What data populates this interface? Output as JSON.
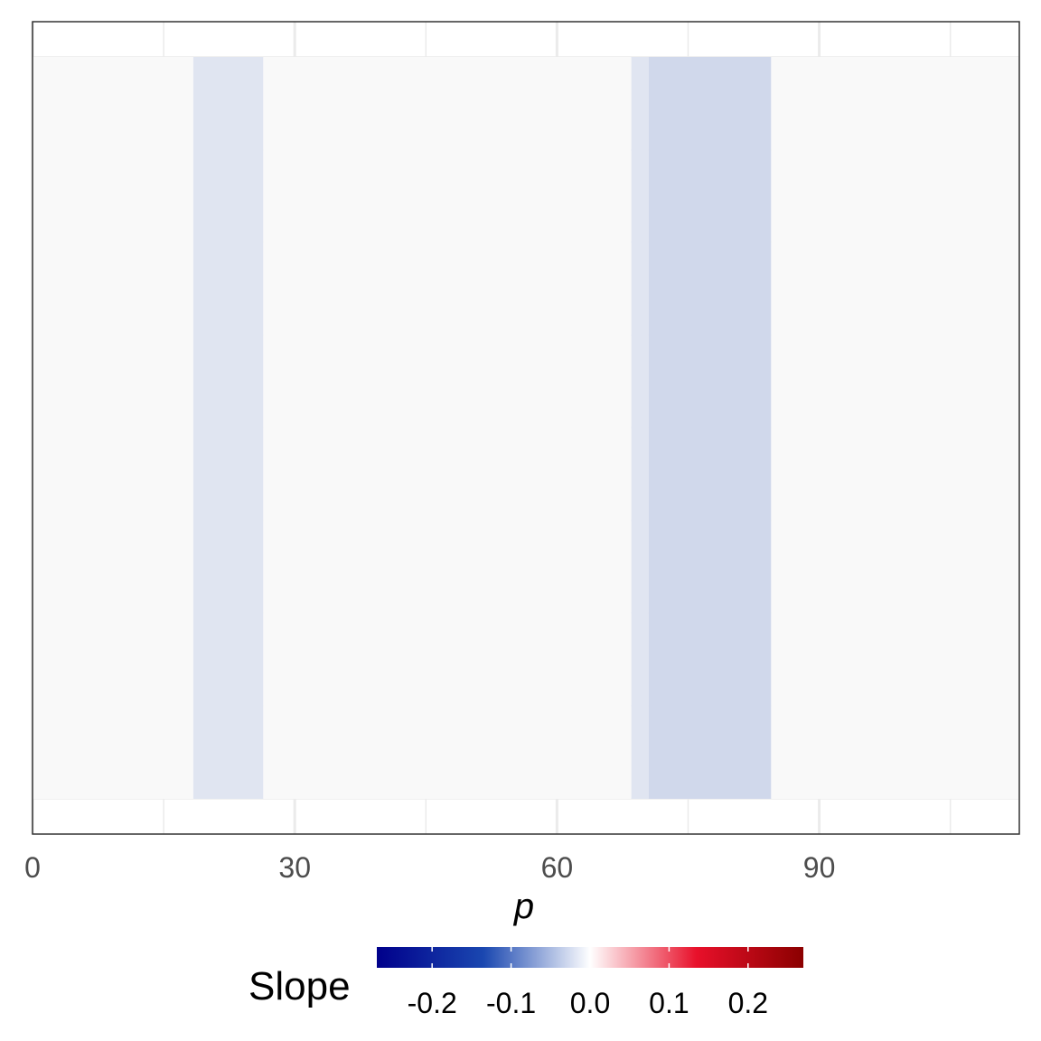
{
  "chart_data": {
    "type": "heatmap",
    "title": "",
    "xlabel": "p",
    "ylabel": "",
    "xlim": [
      0,
      113
    ],
    "x_ticks": [
      0,
      30,
      60,
      90
    ],
    "x_tick_labels": [
      "0",
      "30",
      "60",
      "90"
    ],
    "grid": true,
    "cells": [
      {
        "x_start": 0,
        "x_end": 18.4,
        "slope": 0.0
      },
      {
        "x_start": 18.4,
        "x_end": 26.4,
        "slope": -0.015
      },
      {
        "x_start": 26.4,
        "x_end": 68.5,
        "slope": 0.0
      },
      {
        "x_start": 68.5,
        "x_end": 70.5,
        "slope": -0.015
      },
      {
        "x_start": 70.5,
        "x_end": 84.5,
        "slope": -0.025
      },
      {
        "x_start": 84.5,
        "x_end": 113,
        "slope": 0.0
      }
    ],
    "legend": {
      "title": "Slope",
      "position": "bottom",
      "range": [
        -0.27,
        0.27
      ],
      "ticks": [
        -0.2,
        -0.1,
        0.0,
        0.1,
        0.2
      ],
      "tick_labels": [
        "-0.2",
        "-0.1",
        "0.0",
        "0.1",
        "0.2"
      ],
      "colors": {
        "low": "#00008b",
        "mid": "#ffffff",
        "high": "#8b0000"
      }
    }
  }
}
